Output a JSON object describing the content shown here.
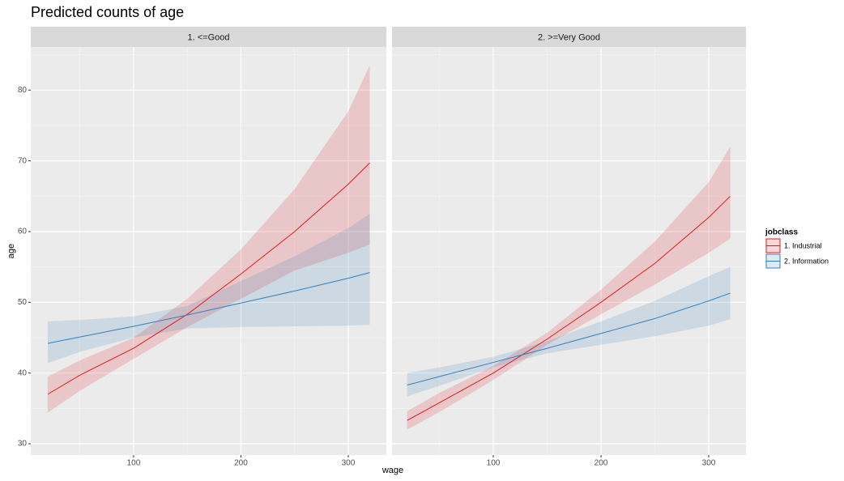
{
  "title": "Predicted counts of age",
  "xlabel": "wage",
  "ylabel": "age",
  "legend_title": "jobclass",
  "chart_data": [
    {
      "type": "line",
      "subtitle": "1. <=Good",
      "x": [
        20,
        50,
        100,
        150,
        200,
        250,
        300,
        320
      ],
      "xlim": [
        4.2,
        335.5
      ],
      "ylim": [
        28.4,
        86.1
      ],
      "xticks": [
        100,
        200,
        300
      ],
      "yticks": [
        30,
        40,
        50,
        60,
        70,
        80
      ],
      "x_minor_grid": [
        50,
        150,
        250
      ],
      "y_minor_grid": [
        35,
        45,
        55,
        65,
        75,
        85
      ],
      "series": [
        {
          "name": "1. Industrial",
          "color": "#e41a1c",
          "values": [
            37,
            39.7,
            43.5,
            48.3,
            54,
            60,
            66.7,
            69.7
          ],
          "lower": [
            34.4,
            37.5,
            42,
            46.5,
            50.5,
            54.5,
            57,
            58.2
          ],
          "upper": [
            39.5,
            41.8,
            45,
            50.5,
            57.5,
            66,
            77,
            83.5
          ]
        },
        {
          "name": "2. Information",
          "color": "#377eb8",
          "values": [
            44.2,
            45.1,
            46.6,
            48.2,
            49.9,
            51.6,
            53.4,
            54.2
          ],
          "lower": [
            41.4,
            43,
            45,
            46.3,
            46.5,
            46.6,
            46.7,
            46.8
          ],
          "upper": [
            47.3,
            47.5,
            48,
            49.5,
            53,
            56.5,
            60.5,
            62.5
          ]
        }
      ]
    },
    {
      "type": "line",
      "subtitle": "2. >=Very Good",
      "x": [
        20,
        50,
        100,
        150,
        200,
        250,
        300,
        320
      ],
      "xlim": [
        6,
        334.6
      ],
      "ylim": [
        28.4,
        86.1
      ],
      "xticks": [
        100,
        200,
        300
      ],
      "yticks": [
        30,
        40,
        50,
        60,
        70,
        80
      ],
      "x_minor_grid": [
        50,
        150,
        250
      ],
      "y_minor_grid": [
        35,
        45,
        55,
        65,
        75,
        85
      ],
      "series": [
        {
          "color": "#e41a1c",
          "values": [
            33.3,
            35.8,
            40,
            44.8,
            50,
            55.5,
            62,
            65
          ],
          "lower": [
            32,
            34.5,
            39,
            44,
            48.3,
            52.5,
            57,
            59
          ],
          "upper": [
            34.6,
            37.2,
            41,
            45.7,
            51.8,
            58.6,
            67,
            72
          ]
        },
        {
          "color": "#377eb8",
          "values": [
            38.3,
            39.5,
            41.5,
            43.5,
            45.6,
            47.7,
            50.2,
            51.3
          ],
          "lower": [
            36.7,
            38.2,
            40.8,
            42.8,
            44,
            45.2,
            46.7,
            47.6
          ],
          "upper": [
            40,
            40.8,
            42.3,
            44.5,
            47.3,
            50.2,
            53.7,
            55
          ]
        }
      ]
    }
  ]
}
